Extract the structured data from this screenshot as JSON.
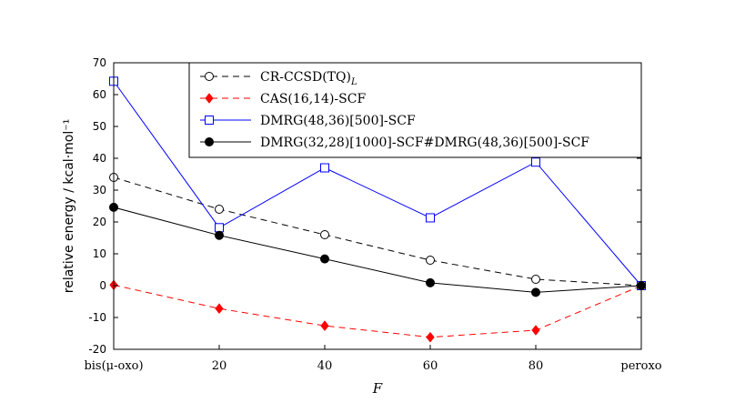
{
  "chart_data": {
    "type": "line",
    "xlabel": "F",
    "ylabel": "relative energy / kcal·mol⁻¹",
    "ylim": [
      -20,
      70
    ],
    "y_ticks": [
      -20,
      -10,
      0,
      10,
      20,
      30,
      40,
      50,
      60,
      70
    ],
    "x": [
      0,
      20,
      40,
      60,
      80,
      100
    ],
    "x_tick_labels": [
      "bis(μ-oxo)",
      "20",
      "40",
      "60",
      "80",
      "peroxo"
    ],
    "grid": false,
    "legend_position": "top-right",
    "series": [
      {
        "name": "CR-CCSD(TQ)_L",
        "color": "#000000",
        "dash": "dashed",
        "marker": "open-circle",
        "values": [
          34,
          24,
          16,
          8,
          2,
          0
        ]
      },
      {
        "name": "CAS(16,14)-SCF",
        "color": "#ff0000",
        "dash": "dashed",
        "marker": "filled-diamond",
        "values": [
          0.2,
          -7.2,
          -12.6,
          -16.2,
          -14,
          0
        ]
      },
      {
        "name": "DMRG(48,36)[500]-SCF",
        "color": "#0000ff",
        "dash": "solid",
        "marker": "open-square",
        "values": [
          64.2,
          18.2,
          37,
          21.3,
          38.8,
          0
        ]
      },
      {
        "name": "DMRG(32,28)[1000]-SCF#DMRG(48,36)[500]-SCF",
        "color": "#000000",
        "dash": "solid",
        "marker": "filled-circle",
        "values": [
          24.6,
          15.8,
          8.4,
          0.9,
          -2.1,
          0
        ]
      }
    ]
  }
}
